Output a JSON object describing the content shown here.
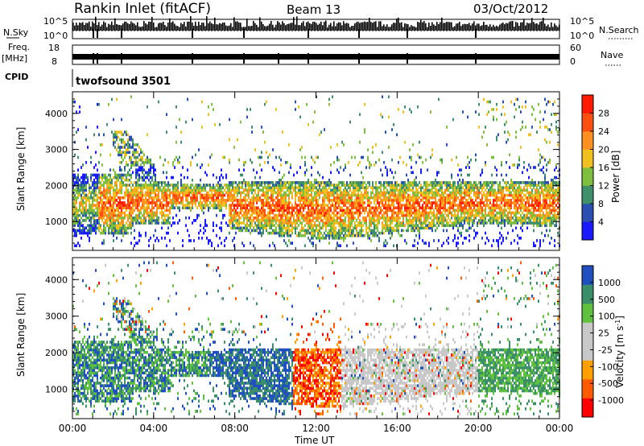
{
  "header": {
    "title": "Rankin Inlet (fitACF)",
    "beam": "Beam 13",
    "date": "03/Oct/2012"
  },
  "top_panels": {
    "nsky_label": "N.Sky",
    "nsky_top_tick": "10^5",
    "nsky_bottom_tick": "10^0",
    "nsearch_label": "N.Search",
    "nsearch_top_tick": "10^5",
    "nsearch_bottom_tick": "10^0",
    "freq_label": "Freq.",
    "freq_unit": "[MHz]",
    "freq_top_tick": "18",
    "freq_bottom_tick": "8",
    "nave_label": "Nave",
    "nave_top_tick": "60",
    "nave_bottom_tick": "0",
    "cpid_label": "CPID",
    "cpid_value": "twofsound 3501"
  },
  "colors": {
    "power_scale": [
      "#1a1aff",
      "#2a4fb0",
      "#3f8f6a",
      "#7fbf3f",
      "#f0c020",
      "#ff9020",
      "#ff5010",
      "#ff1a00"
    ],
    "velocity_scale": [
      "#ff0000",
      "#ff5a00",
      "#ffa000",
      "#c8c8c8",
      "#c8c8c8",
      "#60c040",
      "#3a8f6a",
      "#2050c0"
    ],
    "ground_scatter": "#c8c8c8"
  },
  "chart_data": [
    {
      "type": "heatmap",
      "name": "power-panel",
      "ylabel": "Slant Range [km]",
      "yticks": [
        "1000",
        "2000",
        "3000",
        "4000"
      ],
      "ylim": [
        200,
        4600
      ],
      "colorbar": {
        "label": "Power [dB]",
        "ticks": [
          "4",
          "8",
          "12",
          "16",
          "20",
          "24",
          "28"
        ],
        "range": [
          0,
          30
        ]
      }
    },
    {
      "type": "heatmap",
      "name": "velocity-panel",
      "ylabel": "Slant Range [km]",
      "yticks": [
        "1000",
        "2000",
        "3000",
        "4000"
      ],
      "ylim": [
        200,
        4600
      ],
      "colorbar": {
        "label": "Velocity [m s",
        "label_superscript": "-1",
        "label_suffix": "]",
        "ticks": [
          "1000",
          "500",
          "100",
          "25",
          "-25",
          "-100",
          "-500",
          "-1000"
        ]
      }
    }
  ],
  "xaxis": {
    "label": "Time UT",
    "ticks": [
      "00:00",
      "04:00",
      "08:00",
      "12:00",
      "16:00",
      "20:00",
      "00:00"
    ]
  }
}
